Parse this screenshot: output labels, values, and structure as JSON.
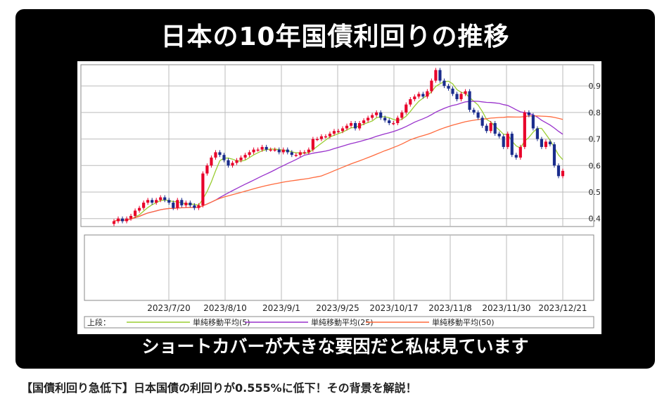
{
  "card": {
    "title": "日本の10年国債利回りの推移",
    "subtitle": "ショートカバーが大きな要因だと私は見ています"
  },
  "caption": "【国債利回り急低下】日本国債の利回りが0.555%に低下！その背景を解説！",
  "chart_data": {
    "type": "candlestick",
    "xlabels": [
      "2023/7/20",
      "2023/8/10",
      "2023/9/1",
      "2023/9/25",
      "2023/10/17",
      "2023/11/8",
      "2023/11/30",
      "2023/12/21"
    ],
    "yticks": [
      0.4,
      0.5,
      0.6,
      0.7,
      0.8,
      0.9
    ],
    "ylim": [
      0.37,
      0.98
    ],
    "legend_prefix": "上段：",
    "legend": [
      {
        "name": "単純移動平均(5)",
        "color": "#9acd32"
      },
      {
        "name": "単純移動平均(25)",
        "color": "#9932cc"
      },
      {
        "name": "単純移動平均(50)",
        "color": "#ff6a3d"
      }
    ],
    "colors": {
      "up": "#e8002a",
      "down": "#1a2c8c",
      "grid": "#bbbbbb"
    },
    "close": [
      0.39,
      0.4,
      0.39,
      0.4,
      0.41,
      0.43,
      0.44,
      0.46,
      0.47,
      0.46,
      0.47,
      0.48,
      0.47,
      0.46,
      0.44,
      0.47,
      0.45,
      0.46,
      0.45,
      0.44,
      0.45,
      0.57,
      0.6,
      0.63,
      0.65,
      0.64,
      0.62,
      0.6,
      0.61,
      0.62,
      0.63,
      0.64,
      0.65,
      0.66,
      0.66,
      0.67,
      0.66,
      0.66,
      0.66,
      0.65,
      0.66,
      0.65,
      0.64,
      0.64,
      0.65,
      0.65,
      0.66,
      0.7,
      0.7,
      0.71,
      0.71,
      0.72,
      0.73,
      0.73,
      0.74,
      0.75,
      0.76,
      0.74,
      0.76,
      0.77,
      0.78,
      0.79,
      0.8,
      0.78,
      0.77,
      0.76,
      0.76,
      0.78,
      0.8,
      0.83,
      0.85,
      0.86,
      0.87,
      0.86,
      0.88,
      0.92,
      0.96,
      0.92,
      0.9,
      0.89,
      0.87,
      0.85,
      0.87,
      0.88,
      0.81,
      0.8,
      0.78,
      0.75,
      0.73,
      0.76,
      0.72,
      0.71,
      0.67,
      0.72,
      0.64,
      0.63,
      0.67,
      0.8,
      0.79,
      0.74,
      0.7,
      0.67,
      0.69,
      0.68,
      0.6,
      0.56,
      0.58
    ]
  }
}
